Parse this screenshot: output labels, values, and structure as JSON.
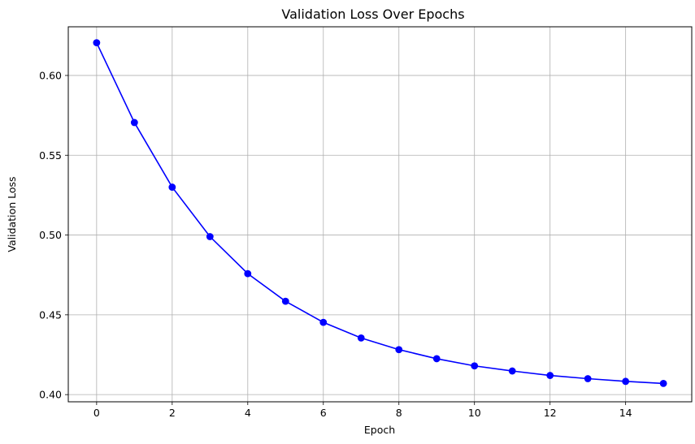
{
  "chart_data": {
    "type": "line",
    "title": "Validation Loss Over Epochs",
    "xlabel": "Epoch",
    "ylabel": "Validation Loss",
    "xlim": [
      -0.75,
      15.75
    ],
    "ylim": [
      0.3955,
      0.6305
    ],
    "x_ticks": [
      0,
      2,
      4,
      6,
      8,
      10,
      12,
      14
    ],
    "y_ticks": [
      0.4,
      0.45,
      0.5,
      0.55,
      0.6
    ],
    "x_tick_labels": [
      "0",
      "2",
      "4",
      "6",
      "8",
      "10",
      "12",
      "14"
    ],
    "y_tick_labels": [
      "0.40",
      "0.45",
      "0.50",
      "0.55",
      "0.60"
    ],
    "grid": true,
    "line_color": "#0000ff",
    "marker": "circle",
    "series": [
      {
        "x": [
          0,
          1,
          2,
          3,
          4,
          5,
          6,
          7,
          8,
          9,
          10,
          11,
          12,
          13,
          14,
          15
        ],
        "values": [
          0.6205,
          0.5705,
          0.53,
          0.499,
          0.4758,
          0.4585,
          0.4453,
          0.4355,
          0.4282,
          0.4225,
          0.418,
          0.4148,
          0.412,
          0.41,
          0.4083,
          0.407
        ]
      }
    ]
  }
}
